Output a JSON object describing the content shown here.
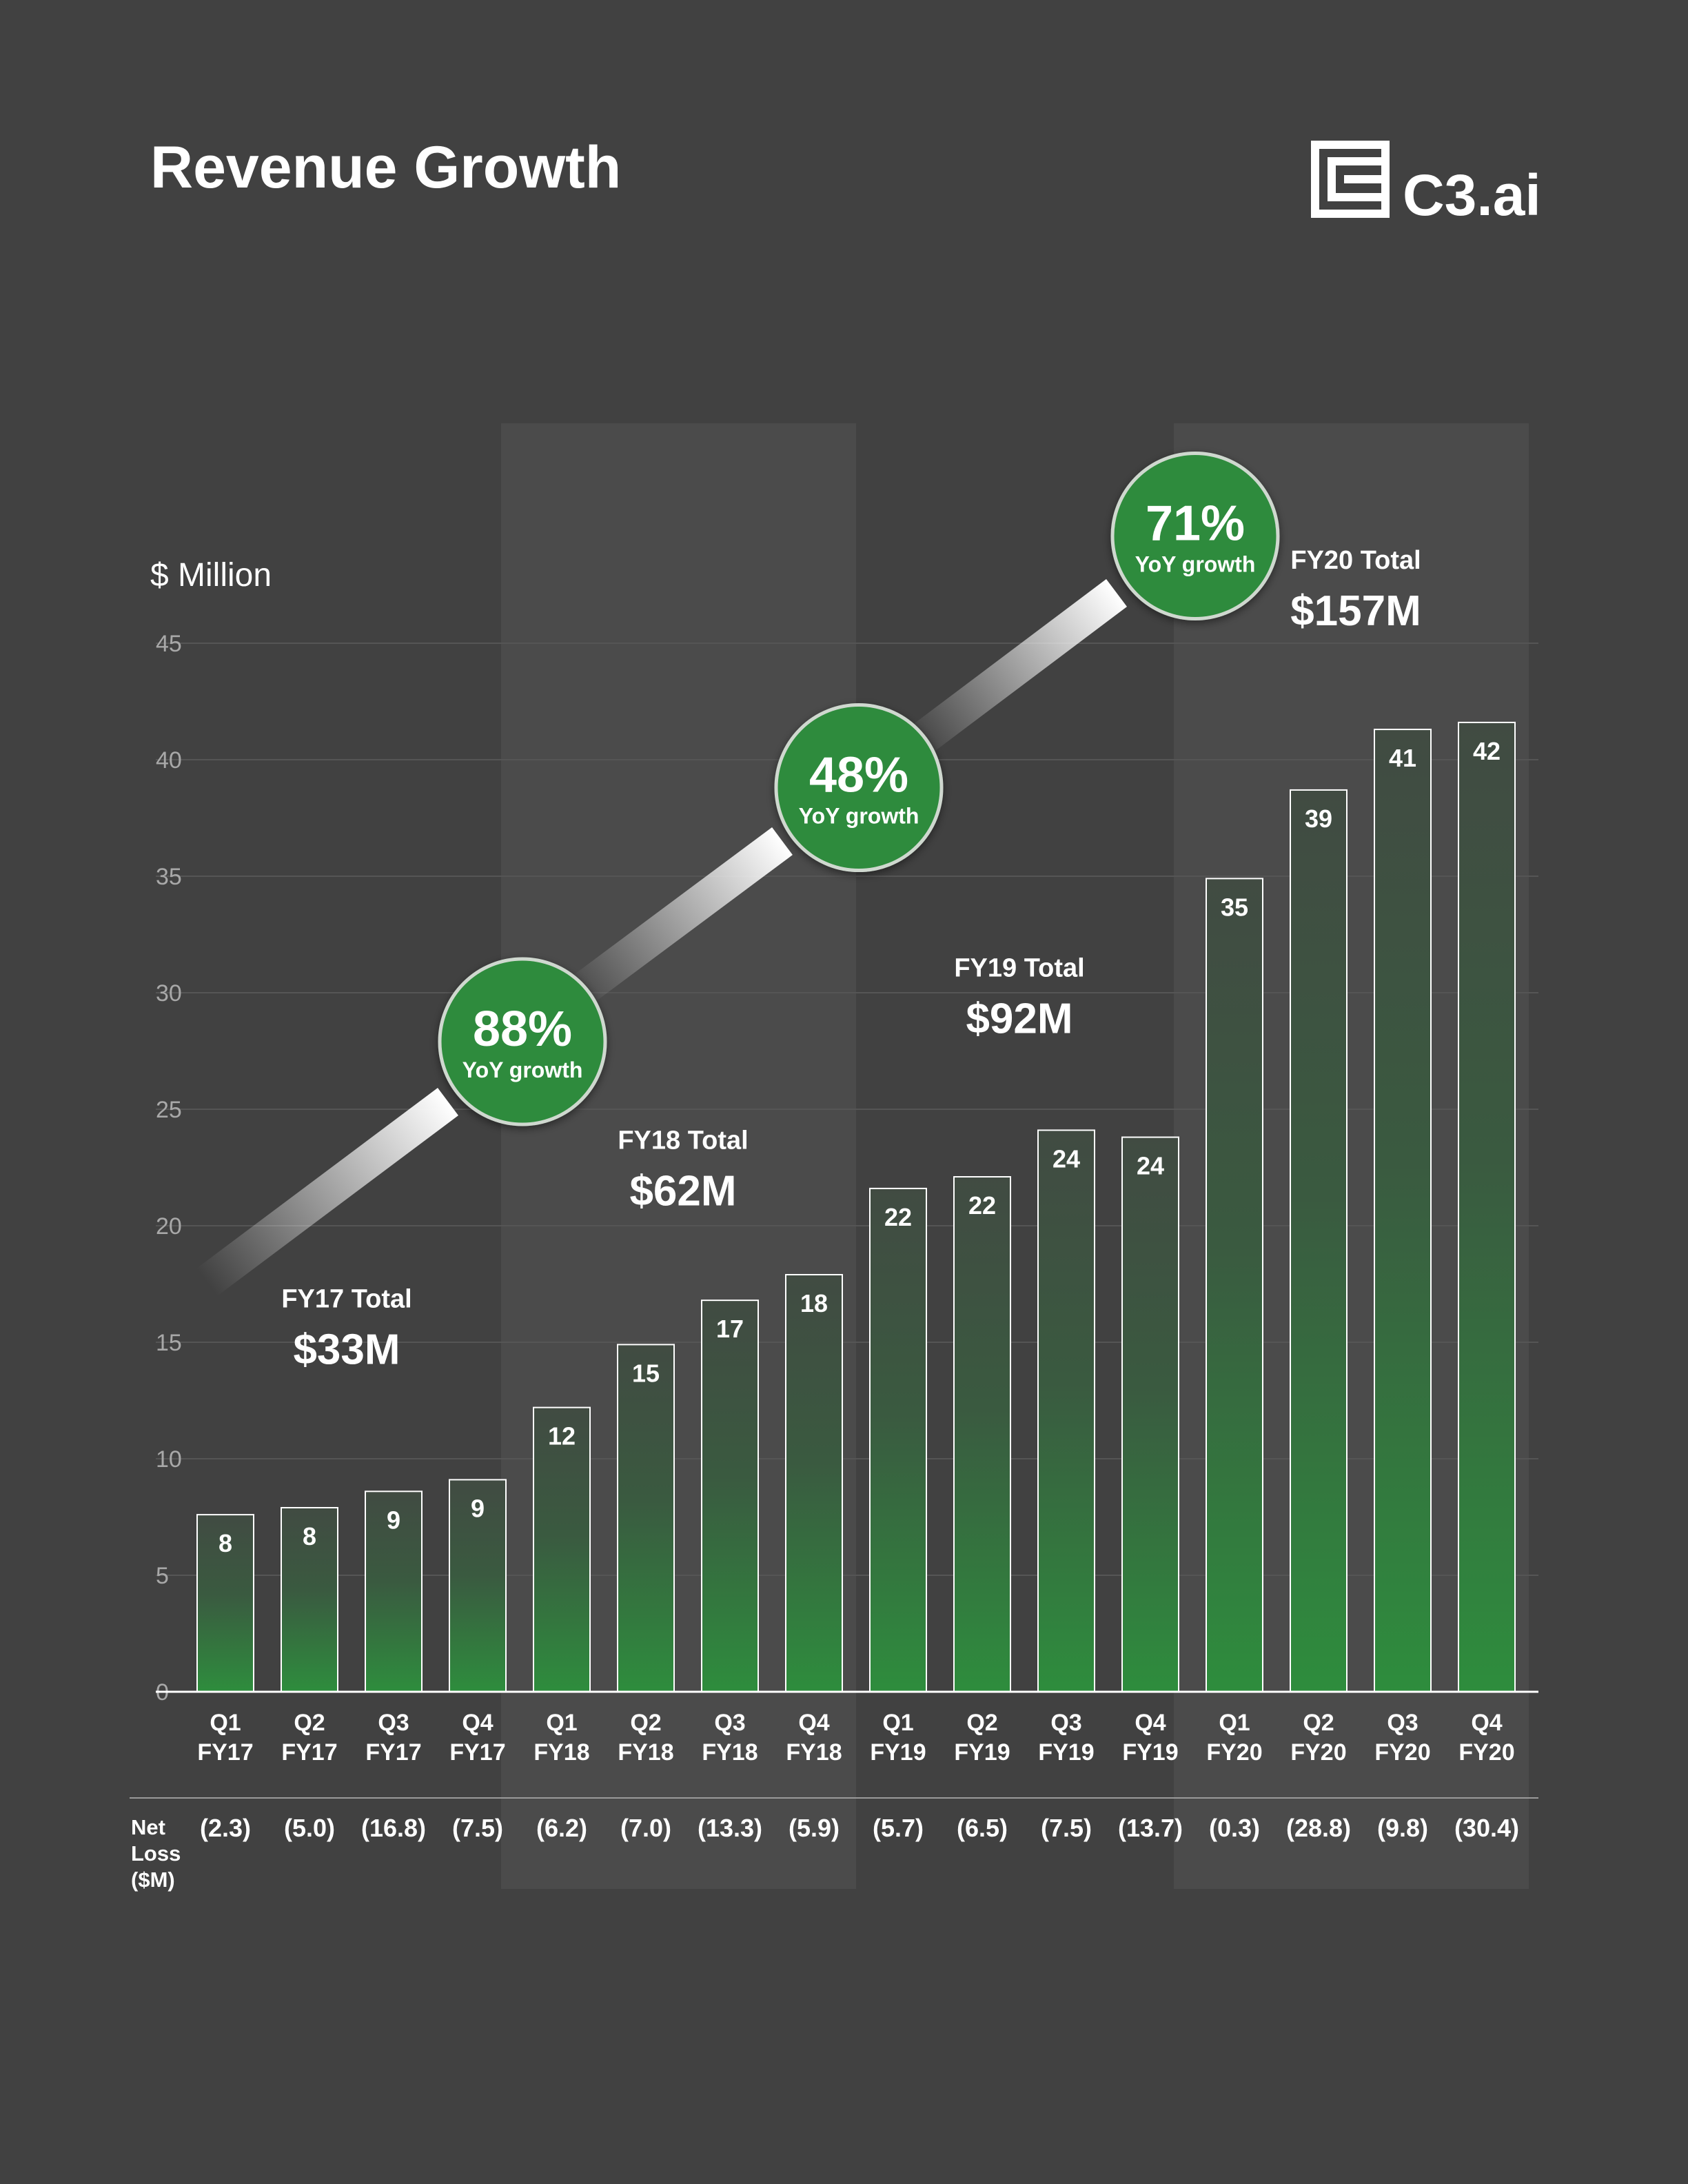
{
  "header": {
    "title": "Revenue Growth",
    "logo_text": "C3.ai"
  },
  "colors": {
    "background": "#414141",
    "band": "#4b4b4b",
    "bar_green": "#2e8b3c",
    "bar_dark": "#3f4a40",
    "badge_green": "#2e8b3c",
    "grid": "#555555",
    "text": "#ffffff",
    "tick": "#a8a8a8"
  },
  "chart_data": {
    "type": "bar",
    "title": "Revenue Growth",
    "ylabel": "$ Million",
    "ylim": [
      0,
      45
    ],
    "yticks": [
      0,
      5,
      10,
      15,
      20,
      25,
      30,
      35,
      40,
      45
    ],
    "categories": [
      [
        "Q1",
        "FY17"
      ],
      [
        "Q2",
        "FY17"
      ],
      [
        "Q3",
        "FY17"
      ],
      [
        "Q4",
        "FY17"
      ],
      [
        "Q1",
        "FY18"
      ],
      [
        "Q2",
        "FY18"
      ],
      [
        "Q3",
        "FY18"
      ],
      [
        "Q4",
        "FY18"
      ],
      [
        "Q1",
        "FY19"
      ],
      [
        "Q2",
        "FY19"
      ],
      [
        "Q3",
        "FY19"
      ],
      [
        "Q4",
        "FY19"
      ],
      [
        "Q1",
        "FY20"
      ],
      [
        "Q2",
        "FY20"
      ],
      [
        "Q3",
        "FY20"
      ],
      [
        "Q4",
        "FY20"
      ]
    ],
    "values": [
      7.6,
      7.9,
      8.6,
      9.1,
      12.2,
      14.9,
      16.8,
      17.9,
      21.6,
      22.1,
      24.1,
      23.8,
      34.9,
      38.7,
      41.3,
      41.6
    ],
    "data_labels": [
      "8",
      "8",
      "9",
      "9",
      "12",
      "15",
      "17",
      "18",
      "22",
      "22",
      "24",
      "24",
      "35",
      "39",
      "41",
      "42"
    ],
    "net_loss_label": [
      "Net",
      "Loss",
      "($M)"
    ],
    "net_loss": [
      "(2.3)",
      "(5.0)",
      "(16.8)",
      "(7.5)",
      "(6.2)",
      "(7.0)",
      "(13.3)",
      "(5.9)",
      "(5.7)",
      "(6.5)",
      "(7.5)",
      "(13.7)",
      "(0.3)",
      "(28.8)",
      "(9.8)",
      "(30.4)"
    ],
    "fiscal_totals": [
      {
        "label": "FY17 Total",
        "value": "$33M",
        "first_bar": 0,
        "last_bar": 3,
        "anchor_y": 16.5
      },
      {
        "label": "FY18 Total",
        "value": "$62M",
        "first_bar": 4,
        "last_bar": 7,
        "anchor_y": 23.3
      },
      {
        "label": "FY19 Total",
        "value": "$92M",
        "first_bar": 8,
        "last_bar": 11,
        "anchor_y": 30.7
      },
      {
        "label": "FY20 Total",
        "value": "$157M",
        "first_bar": 12,
        "last_bar": 15,
        "anchor_y": 48.2
      }
    ],
    "growth_badges": [
      {
        "pct": "88%",
        "text": "YoY growth",
        "between_bars": [
          3,
          4
        ],
        "y": 27.9
      },
      {
        "pct": "48%",
        "text": "YoY growth",
        "between_bars": [
          7,
          8
        ],
        "y": 38.8
      },
      {
        "pct": "71%",
        "text": "YoY growth",
        "between_bars": [
          11,
          12
        ],
        "y": 49.6
      }
    ],
    "shaded_years": [
      1,
      3
    ]
  }
}
